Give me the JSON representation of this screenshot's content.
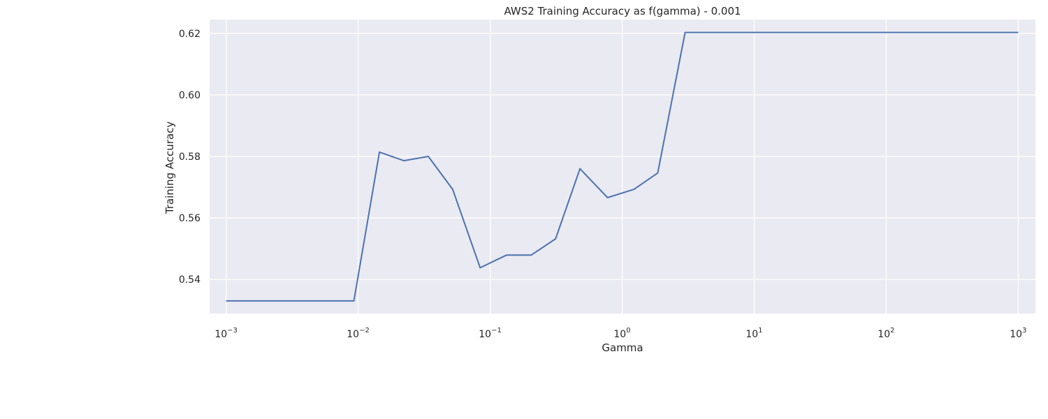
{
  "chart_data": {
    "type": "line",
    "title": "AWS2 Training Accuracy as f(gamma) - 0.001",
    "xlabel": "Gamma",
    "ylabel": "Training Accuracy",
    "xscale": "log",
    "xlim": [
      0.00075,
      1350
    ],
    "ylim": [
      0.5289,
      0.6245
    ],
    "grid": true,
    "x_ticks": [
      {
        "value": 0.001,
        "base": "10",
        "exp": "−3"
      },
      {
        "value": 0.01,
        "base": "10",
        "exp": "−2"
      },
      {
        "value": 0.1,
        "base": "10",
        "exp": "−1"
      },
      {
        "value": 1,
        "base": "10",
        "exp": "0"
      },
      {
        "value": 10,
        "base": "10",
        "exp": "1"
      },
      {
        "value": 100,
        "base": "10",
        "exp": "2"
      },
      {
        "value": 1000,
        "base": "10",
        "exp": "3"
      }
    ],
    "y_ticks": [
      {
        "value": 0.54,
        "label": "0.54"
      },
      {
        "value": 0.56,
        "label": "0.56"
      },
      {
        "value": 0.58,
        "label": "0.58"
      },
      {
        "value": 0.6,
        "label": "0.60"
      },
      {
        "value": 0.62,
        "label": "0.62"
      }
    ],
    "series": [
      {
        "color": "#4c72b0",
        "x": [
          0.001,
          0.00153,
          0.00234,
          0.00358,
          0.00549,
          0.0084,
          0.00929,
          0.0145,
          0.0222,
          0.034,
          0.052,
          0.084,
          0.133,
          0.205,
          0.313,
          0.479,
          0.775,
          1.23,
          1.86,
          3.0,
          4.6,
          7.04,
          10.8,
          16.5,
          25.3,
          38.7,
          59.3,
          90.8,
          139,
          213,
          326,
          499,
          764,
          1000
        ],
        "y": [
          0.533,
          0.533,
          0.533,
          0.533,
          0.533,
          0.533,
          0.533,
          0.5814,
          0.5786,
          0.58,
          0.5693,
          0.5438,
          0.5479,
          0.5479,
          0.5532,
          0.576,
          0.5666,
          0.5693,
          0.5746,
          0.6203,
          0.6203,
          0.6203,
          0.6203,
          0.6203,
          0.6203,
          0.6203,
          0.6203,
          0.6203,
          0.6203,
          0.6203,
          0.6203,
          0.6203,
          0.6203,
          0.6203
        ]
      }
    ]
  }
}
